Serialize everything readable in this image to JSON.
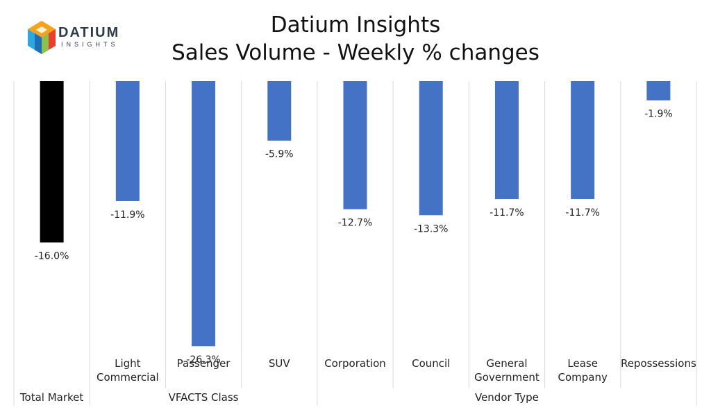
{
  "logo": {
    "word": "DATIUM",
    "sub": "INSIGHTS"
  },
  "chart_data": {
    "type": "bar",
    "title": "Datium Insights",
    "subtitle": "Sales Volume - Weekly % changes",
    "categories": [
      "",
      "Light Commercial",
      "Passenger",
      "SUV",
      "Corporation",
      "Council",
      "General Government",
      "Lease Company",
      "Repossessions"
    ],
    "category_lines": [
      [
        ""
      ],
      [
        "Light",
        "Commercial"
      ],
      [
        "Passenger"
      ],
      [
        "SUV"
      ],
      [
        "Corporation"
      ],
      [
        "Council"
      ],
      [
        "General",
        "Government"
      ],
      [
        "Lease",
        "Company"
      ],
      [
        "Repossessions"
      ]
    ],
    "groups": [
      {
        "label": "Total Market",
        "categories": [
          ""
        ]
      },
      {
        "label": "VFACTS Class",
        "categories": [
          "Light Commercial",
          "Passenger",
          "SUV"
        ]
      },
      {
        "label": "Vendor Type",
        "categories": [
          "Corporation",
          "Council",
          "General Government",
          "Lease Company",
          "Repossessions"
        ]
      }
    ],
    "values": [
      -16.0,
      -11.9,
      -26.3,
      -5.9,
      -12.7,
      -13.3,
      -11.7,
      -11.7,
      -1.9
    ],
    "data_labels": [
      "-16.0%",
      "-11.9%",
      "-26.3%",
      "-5.9%",
      "-12.7%",
      "-13.3%",
      "-11.7%",
      "-11.7%",
      "-1.9%"
    ],
    "colors": [
      "#000000",
      "#4472c4",
      "#4472c4",
      "#4472c4",
      "#4472c4",
      "#4472c4",
      "#4472c4",
      "#4472c4",
      "#4472c4"
    ],
    "ylim": [
      -30,
      0
    ],
    "grid": false,
    "legend": false
  }
}
